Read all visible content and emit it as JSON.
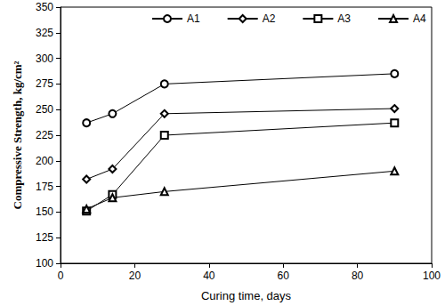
{
  "chart_data": {
    "type": "line",
    "x_label": "Curing time, days",
    "y_label": "Compressive Strength, kg/cm²",
    "xlim": [
      0,
      100
    ],
    "xticks": [
      0,
      20,
      40,
      60,
      80,
      100
    ],
    "ylim": [
      100,
      350
    ],
    "yticks": [
      100,
      125,
      150,
      175,
      200,
      225,
      250,
      275,
      300,
      325,
      350
    ],
    "grid": false,
    "legend": "top",
    "series": [
      {
        "name": "A1",
        "color": "#000000",
        "marker": "circle",
        "x": [
          7,
          14,
          28,
          90
        ],
        "values": [
          237,
          246,
          275,
          285
        ]
      },
      {
        "name": "A2",
        "color": "#000000",
        "marker": "diamond",
        "x": [
          7,
          14,
          28,
          90
        ],
        "values": [
          182,
          192,
          246,
          251
        ]
      },
      {
        "name": "A3",
        "color": "#000000",
        "marker": "square",
        "x": [
          7,
          14,
          28,
          90
        ],
        "values": [
          151,
          167,
          225,
          237
        ]
      },
      {
        "name": "A4",
        "color": "#000000",
        "marker": "triangle",
        "x": [
          7,
          14,
          28,
          90
        ],
        "values": [
          153,
          164,
          170,
          190
        ]
      }
    ]
  }
}
